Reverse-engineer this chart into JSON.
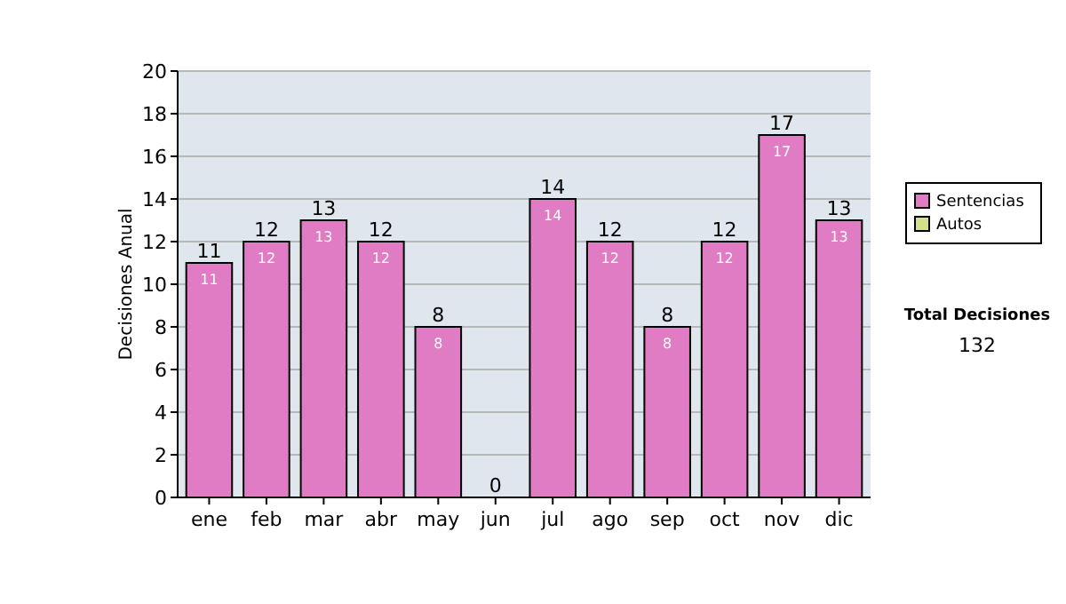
{
  "chart_data": {
    "type": "bar",
    "ylabel": "Decisiones Anual",
    "categories": [
      "ene",
      "feb",
      "mar",
      "abr",
      "may",
      "jun",
      "jul",
      "ago",
      "sep",
      "oct",
      "nov",
      "dic"
    ],
    "series": [
      {
        "name": "Sentencias",
        "color": "#e07cc4",
        "values": [
          11,
          12,
          13,
          12,
          8,
          0,
          14,
          12,
          8,
          12,
          17,
          13
        ],
        "value_labels": [
          "11",
          "12",
          "13",
          "12",
          "8",
          null,
          "14",
          "12",
          "8",
          "12",
          "17",
          "13"
        ]
      },
      {
        "name": "Autos",
        "color": "#d4e08c",
        "values": [
          null,
          null,
          null,
          null,
          null,
          null,
          null,
          null,
          null,
          null,
          null,
          null
        ]
      }
    ],
    "stacked": true,
    "totals": [
      "11",
      "12",
      "13",
      "12",
      "8",
      "0",
      "14",
      "12",
      "8",
      "12",
      "17",
      "13"
    ],
    "ylim": [
      0,
      20
    ],
    "yticks": [
      0,
      2,
      4,
      6,
      8,
      10,
      12,
      14,
      16,
      18,
      20
    ],
    "grid": "y",
    "legend": "right",
    "annotations": [
      "Total Decisiones",
      "132"
    ]
  }
}
